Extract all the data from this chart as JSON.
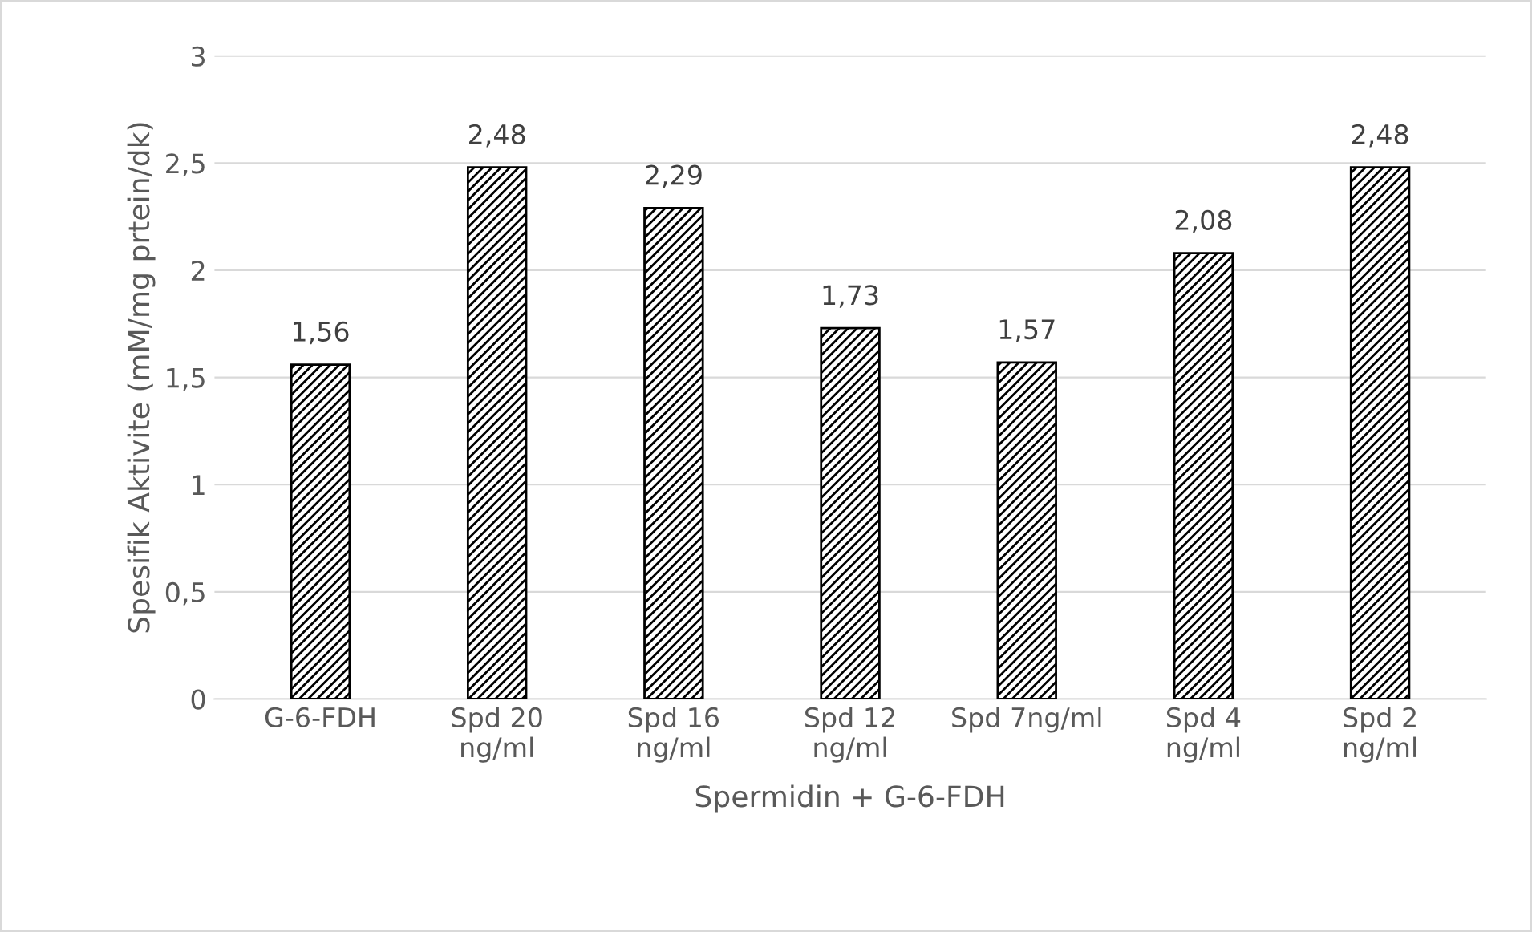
{
  "chart_data": {
    "type": "bar",
    "xlabel": "Spermidin + G-6-FDH",
    "ylabel": "Spesifik Aktivite (mM/mg prtein/dk)",
    "categories": [
      "G-6-FDH",
      "Spd 20\nng/ml",
      "Spd 16\nng/ml",
      "Spd 12\nng/ml",
      "Spd 7ng/ml",
      "Spd 4\nng/ml",
      "Spd 2\nng/ml"
    ],
    "values": [
      1.56,
      2.48,
      2.29,
      1.73,
      1.57,
      2.08,
      2.48
    ],
    "value_labels": [
      "1,56",
      "2,48",
      "2,29",
      "1,73",
      "1,57",
      "2,08",
      "2,48"
    ],
    "color": "#000000",
    "ylim": [
      0,
      3
    ],
    "yticks": [
      0,
      {
        "value": 0.5,
        "label": "0,5"
      },
      1,
      {
        "value": 1.5,
        "label": "1,5"
      },
      2,
      {
        "value": 2.5,
        "label": "2,5"
      },
      3
    ],
    "grid": "y",
    "legend": false
  }
}
